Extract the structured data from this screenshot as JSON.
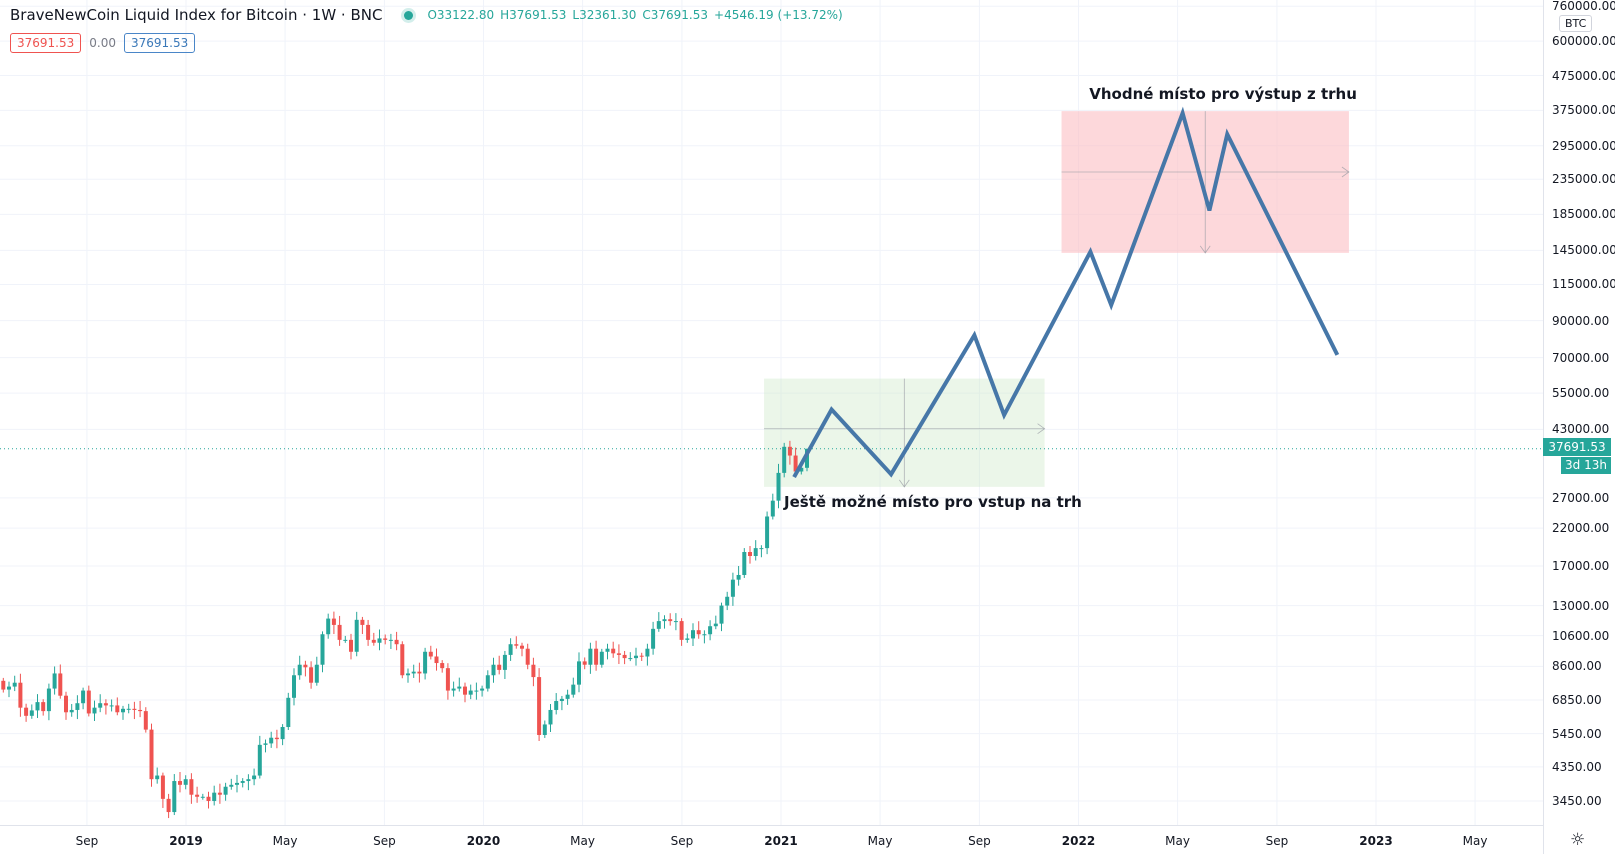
{
  "header": {
    "title": "BraveNewCoin Liquid Index for Bitcoin · 1W · BNC",
    "open": "O33122.80",
    "high": "H37691.53",
    "low": "L32361.30",
    "close": "C37691.53",
    "change": "+4546.19 (+13.72%)"
  },
  "legend": {
    "sell": "37691.53",
    "spread": "0.00",
    "buy": "37691.53"
  },
  "price_axis": {
    "currency": "BTC",
    "ticks": [
      760000,
      600000,
      475000,
      375000,
      295000,
      235000,
      185000,
      145000,
      115000,
      90000,
      70000,
      55000,
      43000,
      27000,
      22000,
      17000,
      13000,
      10600,
      8600,
      6850,
      5450,
      4350,
      3450
    ],
    "current_price": "37691.53",
    "countdown": "3d 13h"
  },
  "time_axis": {
    "labels": [
      {
        "t": 2018.667,
        "label": "Sep",
        "year": false
      },
      {
        "t": 2019.0,
        "label": "2019",
        "year": true
      },
      {
        "t": 2019.333,
        "label": "May",
        "year": false
      },
      {
        "t": 2019.667,
        "label": "Sep",
        "year": false
      },
      {
        "t": 2020.0,
        "label": "2020",
        "year": true
      },
      {
        "t": 2020.333,
        "label": "May",
        "year": false
      },
      {
        "t": 2020.667,
        "label": "Sep",
        "year": false
      },
      {
        "t": 2021.0,
        "label": "2021",
        "year": true
      },
      {
        "t": 2021.333,
        "label": "May",
        "year": false
      },
      {
        "t": 2021.667,
        "label": "Sep",
        "year": false
      },
      {
        "t": 2022.0,
        "label": "2022",
        "year": true
      },
      {
        "t": 2022.333,
        "label": "May",
        "year": false
      },
      {
        "t": 2022.667,
        "label": "Sep",
        "year": false
      },
      {
        "t": 2023.0,
        "label": "2023",
        "year": true
      },
      {
        "t": 2023.333,
        "label": "May",
        "year": false
      }
    ]
  },
  "chart_data": {
    "type": "candlestick",
    "interval": "1W",
    "first_week": "2018-05-21",
    "first_open": 7800,
    "closes": [
      7350,
      7500,
      7700,
      6500,
      6150,
      6380,
      6750,
      6350,
      7400,
      8200,
      7050,
      6300,
      6400,
      6700,
      7300,
      6250,
      6500,
      6700,
      6600,
      6600,
      6300,
      6450,
      6450,
      6400,
      6350,
      5600,
      4000,
      4100,
      3500,
      3200,
      3950,
      3850,
      4000,
      3600,
      3550,
      3550,
      3450,
      3650,
      3600,
      3800,
      3850,
      3900,
      3950,
      4000,
      4100,
      5050,
      5100,
      5300,
      5250,
      5700,
      6950,
      8100,
      8700,
      8550,
      7700,
      8700,
      10700,
      11900,
      11400,
      10300,
      10300,
      9500,
      11800,
      11400,
      10300,
      10100,
      10400,
      10300,
      10300,
      10000,
      8100,
      8200,
      8300,
      8200,
      9500,
      9200,
      8800,
      8500,
      7300,
      7400,
      7500,
      7100,
      7300,
      7300,
      7400,
      8100,
      8700,
      8400,
      9300,
      10000,
      9900,
      9700,
      8700,
      8000,
      5400,
      5800,
      6400,
      6800,
      6900,
      7100,
      7600,
      8900,
      8700,
      9700,
      8700,
      9500,
      9700,
      9400,
      9300,
      9100,
      9100,
      9250,
      9200,
      9700,
      11100,
      11700,
      11850,
      11700,
      11700,
      10300,
      10400,
      11000,
      10700,
      10700,
      11300,
      11500,
      13000,
      13800,
      15500,
      16000,
      18700,
      18200,
      19200,
      19200,
      23800,
      26500,
      32000,
      38200,
      36000,
      32300,
      33122.8,
      37691.53
    ],
    "last_candle": {
      "open": 33122.8,
      "high": 37691.53,
      "low": 32361.3,
      "close": 37691.53
    },
    "scale": "log",
    "colors": {
      "up": "#26a69a",
      "down": "#ef5350",
      "projection": "#4677a8"
    }
  },
  "drawings": {
    "projection_path": [
      {
        "t": 2021.044,
        "p": 31100
      },
      {
        "t": 2021.17,
        "p": 49200
      },
      {
        "t": 2021.37,
        "p": 31700
      },
      {
        "t": 2021.65,
        "p": 81500
      },
      {
        "t": 2021.75,
        "p": 47400
      },
      {
        "t": 2022.04,
        "p": 143600
      },
      {
        "t": 2022.11,
        "p": 100000
      },
      {
        "t": 2022.35,
        "p": 368000
      },
      {
        "t": 2022.44,
        "p": 190000
      },
      {
        "t": 2022.5,
        "p": 319000
      },
      {
        "t": 2022.87,
        "p": 71300
      }
    ],
    "entry_zone": {
      "t0": 2020.943,
      "t1": 2021.886,
      "p_top": 60700,
      "p_bottom": 29100,
      "label": "Ještě možné místo pro vstup na trh"
    },
    "exit_zone": {
      "t0": 2021.943,
      "t1": 2022.909,
      "p_top": 373000,
      "p_bottom": 142500,
      "label": "Vhodné místo pro výstup z trhu"
    }
  }
}
